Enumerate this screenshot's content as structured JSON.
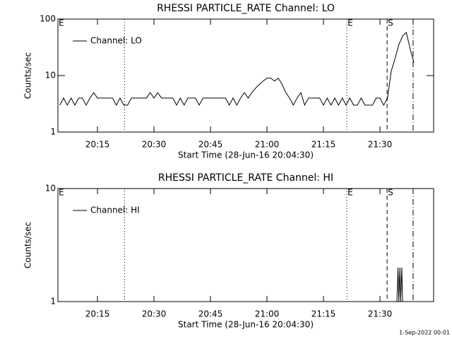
{
  "chart_data": [
    {
      "type": "line",
      "title": "RHESSI PARTICLE_RATE Channel: LO",
      "xlabel": "Start Time (28-Jun-16 20:04:30)",
      "ylabel": "Counts/sec",
      "log_y": true,
      "xlim": [
        1204.5,
        1304.25
      ],
      "ylim": [
        1,
        100
      ],
      "xticks": [
        {
          "value": 1215,
          "label": "20:15"
        },
        {
          "value": 1230,
          "label": "20:30"
        },
        {
          "value": 1245,
          "label": "20:45"
        },
        {
          "value": 1260,
          "label": "21:00"
        },
        {
          "value": 1275,
          "label": "21:15"
        },
        {
          "value": 1290,
          "label": "21:30"
        }
      ],
      "yticks": [
        1,
        10,
        100
      ],
      "x": [
        1205,
        1206,
        1207,
        1208,
        1209,
        1210,
        1211,
        1212,
        1213,
        1214,
        1215,
        1216,
        1217,
        1218,
        1219,
        1220,
        1221,
        1222,
        1223,
        1224,
        1225,
        1226,
        1227,
        1228,
        1229,
        1230,
        1231,
        1232,
        1233,
        1234,
        1235,
        1236,
        1237,
        1238,
        1239,
        1240,
        1241,
        1242,
        1243,
        1244,
        1245,
        1246,
        1247,
        1248,
        1249,
        1250,
        1251,
        1252,
        1253,
        1254,
        1255,
        1256,
        1257,
        1258,
        1259,
        1260,
        1261,
        1262,
        1263,
        1264,
        1265,
        1266,
        1267,
        1268,
        1269,
        1270,
        1271,
        1272,
        1273,
        1274,
        1275,
        1276,
        1277,
        1278,
        1279,
        1280,
        1281,
        1282,
        1283,
        1284,
        1285,
        1286,
        1287,
        1288,
        1289,
        1290,
        1291,
        1292,
        1293,
        1294,
        1295,
        1296,
        1297,
        1298,
        1299
      ],
      "series": [
        {
          "name": "Channel: LO",
          "color": "#000000",
          "values": [
            3,
            4,
            3,
            4,
            3,
            4,
            4,
            3,
            4,
            5,
            4,
            4,
            4,
            4,
            4,
            3,
            4,
            3,
            3,
            4,
            4,
            4,
            4,
            4,
            5,
            4,
            5,
            4,
            4,
            4,
            4,
            3,
            4,
            3,
            4,
            4,
            4,
            3,
            4,
            4,
            4,
            4,
            4,
            4,
            4,
            3,
            4,
            3,
            4,
            5,
            4,
            5,
            6,
            7,
            8,
            9,
            9,
            8,
            9,
            7,
            5,
            4,
            3,
            4,
            5,
            3,
            4,
            4,
            4,
            4,
            3,
            4,
            3,
            4,
            3,
            4,
            3,
            4,
            3,
            3,
            4,
            3,
            3,
            3,
            4,
            4,
            3,
            4,
            12,
            20,
            35,
            50,
            58,
            30,
            17
          ]
        }
      ],
      "markers": [
        {
          "x": 1204.5,
          "label": "E"
        },
        {
          "x": 1222.2,
          "style": "dotted"
        },
        {
          "x": 1281.2,
          "label": "E",
          "style": "dotted"
        },
        {
          "x": 1291.9,
          "label": "S",
          "style": "dashed"
        },
        {
          "x": 1298.8,
          "style": "dashdot"
        }
      ]
    },
    {
      "type": "line",
      "title": "RHESSI PARTICLE_RATE Channel: HI",
      "xlabel": "Start Time (28-Jun-16 20:04:30)",
      "ylabel": "Counts/sec",
      "log_y": true,
      "xlim": [
        1204.5,
        1304.25
      ],
      "ylim": [
        1,
        10
      ],
      "xticks": [
        {
          "value": 1215,
          "label": "20:15"
        },
        {
          "value": 1230,
          "label": "20:30"
        },
        {
          "value": 1245,
          "label": "20:45"
        },
        {
          "value": 1260,
          "label": "21:00"
        },
        {
          "value": 1275,
          "label": "21:15"
        },
        {
          "value": 1290,
          "label": "21:30"
        }
      ],
      "yticks": [
        1,
        10
      ],
      "x": [
        1294.5,
        1294.8,
        1295.0,
        1295.3,
        1295.5,
        1295.8,
        1296.0
      ],
      "series": [
        {
          "name": "Channel: HI",
          "color": "#000000",
          "values": [
            1,
            2,
            1,
            2,
            1,
            2,
            1
          ]
        }
      ],
      "markers": [
        {
          "x": 1204.5,
          "label": "E"
        },
        {
          "x": 1222.2,
          "style": "dotted"
        },
        {
          "x": 1281.2,
          "label": "E",
          "style": "dotted"
        },
        {
          "x": 1291.9,
          "label": "S",
          "style": "dashed"
        },
        {
          "x": 1298.8,
          "style": "dashdot"
        }
      ]
    }
  ],
  "footer": "1-Sep-2022 00:01"
}
